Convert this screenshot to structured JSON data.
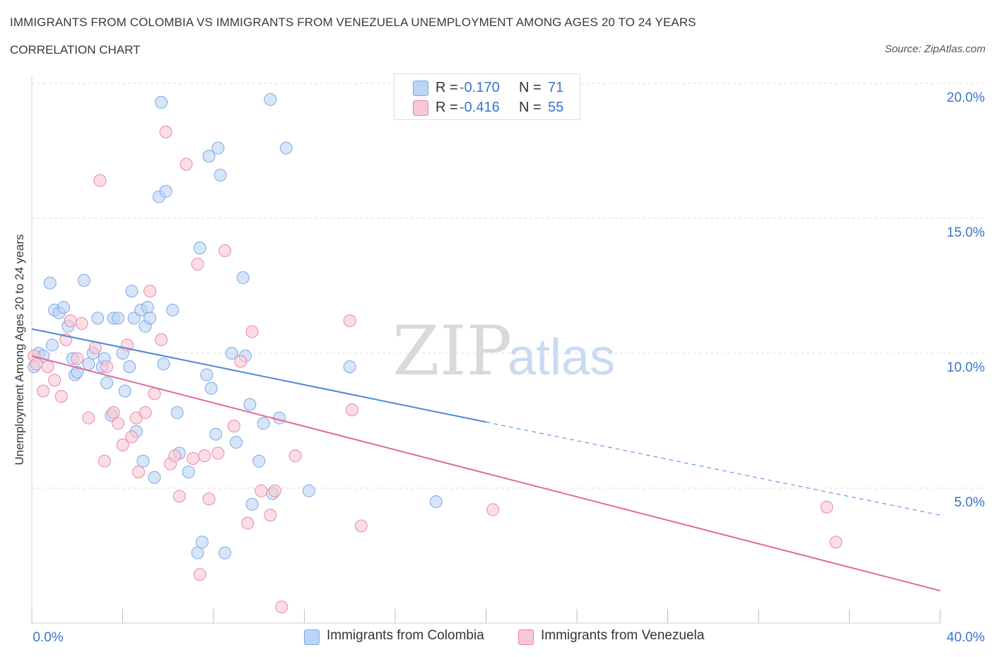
{
  "header": {
    "title": "IMMIGRANTS FROM COLOMBIA VS IMMIGRANTS FROM VENEZUELA UNEMPLOYMENT AMONG AGES 20 TO 24 YEARS",
    "subtitle": "CORRELATION CHART",
    "source": "Source: ZipAtlas.com"
  },
  "legend": {
    "r_label": "R =",
    "n_label": "N =",
    "series": [
      {
        "name": "Immigrants from Colombia",
        "r": "-0.170",
        "n": "71",
        "color": "#7aaae6",
        "fill": "#bcd4f5"
      },
      {
        "name": "Immigrants from Venezuela",
        "r": "-0.416",
        "n": "55",
        "color": "#e889a8",
        "fill": "#f8c6d6"
      }
    ]
  },
  "watermark": {
    "zip": "ZIP",
    "atlas": "atlas"
  },
  "chart_data": {
    "type": "scatter",
    "title": "IMMIGRANTS FROM COLOMBIA VS IMMIGRANTS FROM VENEZUELA UNEMPLOYMENT AMONG AGES 20 TO 24 YEARS",
    "xlabel": "",
    "ylabel": "Unemployment Among Ages 20 to 24 years",
    "xlim": [
      0,
      40
    ],
    "ylim": [
      0,
      20
    ],
    "x_ticks": [
      "0.0%",
      "40.0%"
    ],
    "y_ticks": [
      {
        "value": 5,
        "label": "5.0%"
      },
      {
        "value": 10,
        "label": "10.0%"
      },
      {
        "value": 15,
        "label": "15.0%"
      },
      {
        "value": 20,
        "label": "20.0%"
      }
    ],
    "grid": true,
    "legend_position": "top-center",
    "series": [
      {
        "name": "Immigrants from Colombia",
        "color": "#4f86d6",
        "trend": {
          "x0": 0,
          "y0": 10.9,
          "x1": 20,
          "y1": 7.45,
          "dash_to_x": 40,
          "dash_to_y": 4.0
        },
        "points": [
          [
            0.1,
            9.5
          ],
          [
            0.3,
            10.0
          ],
          [
            0.5,
            9.9
          ],
          [
            0.8,
            12.6
          ],
          [
            0.9,
            10.3
          ],
          [
            1.0,
            11.6
          ],
          [
            1.2,
            11.5
          ],
          [
            1.4,
            11.7
          ],
          [
            1.6,
            11.0
          ],
          [
            1.8,
            9.8
          ],
          [
            1.9,
            9.2
          ],
          [
            2.0,
            9.3
          ],
          [
            2.3,
            12.7
          ],
          [
            2.5,
            9.6
          ],
          [
            2.7,
            10.0
          ],
          [
            2.9,
            11.3
          ],
          [
            3.1,
            9.5
          ],
          [
            3.2,
            9.8
          ],
          [
            3.3,
            8.9
          ],
          [
            3.5,
            7.7
          ],
          [
            3.6,
            11.3
          ],
          [
            3.8,
            11.3
          ],
          [
            4.0,
            10.0
          ],
          [
            4.1,
            8.6
          ],
          [
            4.3,
            9.5
          ],
          [
            4.4,
            12.3
          ],
          [
            4.5,
            11.3
          ],
          [
            4.6,
            7.1
          ],
          [
            4.8,
            11.6
          ],
          [
            4.9,
            6.0
          ],
          [
            5.0,
            11.0
          ],
          [
            5.1,
            11.7
          ],
          [
            5.2,
            11.3
          ],
          [
            5.4,
            5.4
          ],
          [
            5.6,
            15.8
          ],
          [
            5.7,
            19.3
          ],
          [
            5.8,
            9.6
          ],
          [
            5.9,
            16.0
          ],
          [
            6.2,
            11.6
          ],
          [
            6.4,
            7.8
          ],
          [
            6.5,
            6.3
          ],
          [
            6.9,
            5.6
          ],
          [
            7.3,
            2.6
          ],
          [
            7.4,
            13.9
          ],
          [
            7.5,
            3.0
          ],
          [
            7.7,
            9.2
          ],
          [
            7.8,
            17.3
          ],
          [
            7.9,
            8.7
          ],
          [
            8.1,
            7.0
          ],
          [
            8.2,
            17.6
          ],
          [
            8.3,
            16.6
          ],
          [
            8.5,
            2.6
          ],
          [
            8.8,
            10.0
          ],
          [
            9.0,
            6.7
          ],
          [
            9.3,
            12.8
          ],
          [
            9.4,
            9.9
          ],
          [
            9.6,
            8.1
          ],
          [
            9.7,
            4.4
          ],
          [
            10.0,
            6.0
          ],
          [
            10.2,
            7.4
          ],
          [
            10.5,
            19.4
          ],
          [
            10.6,
            4.8
          ],
          [
            10.9,
            7.6
          ],
          [
            11.2,
            17.6
          ],
          [
            12.2,
            4.9
          ],
          [
            14.0,
            9.5
          ],
          [
            17.8,
            4.5
          ]
        ]
      },
      {
        "name": "Immigrants from Venezuela",
        "color": "#e06b96",
        "trend": {
          "x0": 0,
          "y0": 9.9,
          "x1": 40,
          "y1": 1.2
        },
        "points": [
          [
            0.1,
            9.9
          ],
          [
            0.2,
            9.6
          ],
          [
            0.5,
            8.6
          ],
          [
            0.7,
            9.5
          ],
          [
            1.0,
            9.0
          ],
          [
            1.3,
            8.4
          ],
          [
            1.5,
            10.5
          ],
          [
            1.7,
            11.2
          ],
          [
            2.0,
            9.8
          ],
          [
            2.2,
            11.1
          ],
          [
            2.5,
            7.6
          ],
          [
            2.8,
            10.2
          ],
          [
            3.0,
            16.4
          ],
          [
            3.2,
            6.0
          ],
          [
            3.3,
            9.5
          ],
          [
            3.6,
            7.8
          ],
          [
            3.8,
            7.4
          ],
          [
            4.0,
            6.6
          ],
          [
            4.2,
            10.3
          ],
          [
            4.4,
            6.9
          ],
          [
            4.6,
            7.6
          ],
          [
            4.7,
            5.6
          ],
          [
            5.0,
            7.8
          ],
          [
            5.2,
            12.3
          ],
          [
            5.4,
            8.5
          ],
          [
            5.7,
            10.5
          ],
          [
            5.9,
            18.2
          ],
          [
            6.1,
            5.9
          ],
          [
            6.3,
            6.2
          ],
          [
            6.5,
            4.7
          ],
          [
            6.8,
            17.0
          ],
          [
            7.1,
            6.1
          ],
          [
            7.3,
            13.3
          ],
          [
            7.4,
            1.8
          ],
          [
            7.6,
            6.2
          ],
          [
            7.8,
            4.6
          ],
          [
            8.2,
            6.3
          ],
          [
            8.5,
            13.8
          ],
          [
            8.9,
            7.3
          ],
          [
            9.2,
            9.7
          ],
          [
            9.5,
            3.7
          ],
          [
            9.7,
            10.8
          ],
          [
            10.1,
            4.9
          ],
          [
            10.5,
            4.0
          ],
          [
            10.7,
            4.9
          ],
          [
            11.0,
            0.6
          ],
          [
            11.6,
            6.2
          ],
          [
            14.0,
            11.2
          ],
          [
            14.1,
            7.9
          ],
          [
            14.5,
            3.6
          ],
          [
            20.3,
            4.2
          ],
          [
            35.0,
            4.3
          ],
          [
            35.4,
            3.0
          ]
        ]
      }
    ]
  }
}
